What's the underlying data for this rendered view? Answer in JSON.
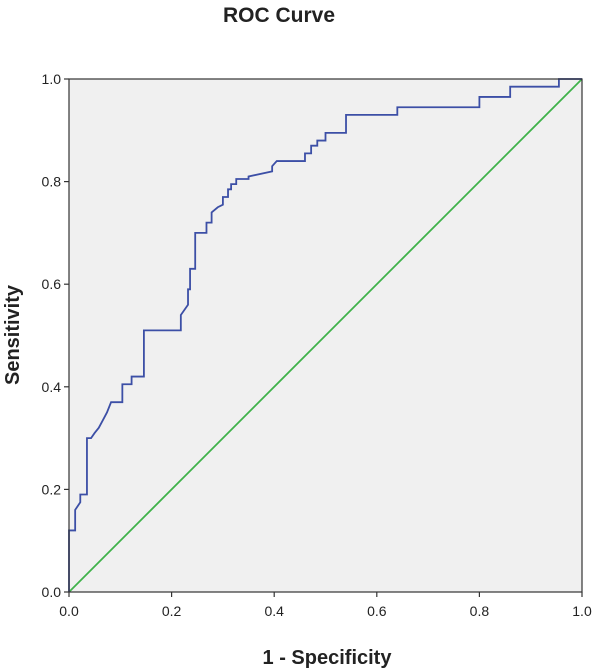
{
  "chart_data": {
    "type": "line",
    "title": "ROC Curve",
    "xlabel": "1 - Specificity",
    "ylabel": "Sensitivity",
    "xlim": [
      0,
      1
    ],
    "ylim": [
      0,
      1
    ],
    "grid": false,
    "plot_background": "#f0f0f0",
    "x_ticks": [
      0.0,
      0.2,
      0.4,
      0.6,
      0.8,
      1.0
    ],
    "x_tick_labels": [
      "0.0",
      "0.2",
      "0.4",
      "0.6",
      "0.8",
      "1.0"
    ],
    "y_ticks": [
      0.0,
      0.2,
      0.4,
      0.6,
      0.8,
      1.0
    ],
    "y_tick_labels": [
      "0.0",
      "0.2",
      "0.4",
      "0.6",
      "0.8",
      "1.0"
    ],
    "series": [
      {
        "color": "#3c4fa6",
        "step": true,
        "x": [
          0.0,
          0.0,
          0.012,
          0.012,
          0.022,
          0.022,
          0.035,
          0.035,
          0.043,
          0.05,
          0.058,
          0.066,
          0.074,
          0.082,
          0.082,
          0.104,
          0.104,
          0.122,
          0.122,
          0.146,
          0.146,
          0.218,
          0.218,
          0.232,
          0.232,
          0.236,
          0.236,
          0.246,
          0.246,
          0.268,
          0.268,
          0.278,
          0.278,
          0.29,
          0.3,
          0.3,
          0.31,
          0.31,
          0.316,
          0.316,
          0.326,
          0.326,
          0.35,
          0.35,
          0.396,
          0.396,
          0.405,
          0.41,
          0.46,
          0.46,
          0.472,
          0.472,
          0.484,
          0.484,
          0.5,
          0.5,
          0.54,
          0.54,
          0.64,
          0.64,
          0.8,
          0.8,
          0.86,
          0.86,
          0.955,
          0.955,
          1.0
        ],
        "y": [
          0.0,
          0.12,
          0.12,
          0.16,
          0.175,
          0.19,
          0.19,
          0.3,
          0.3,
          0.31,
          0.32,
          0.335,
          0.35,
          0.37,
          0.37,
          0.37,
          0.405,
          0.405,
          0.42,
          0.42,
          0.51,
          0.51,
          0.54,
          0.56,
          0.59,
          0.59,
          0.63,
          0.63,
          0.7,
          0.7,
          0.72,
          0.72,
          0.74,
          0.75,
          0.755,
          0.77,
          0.77,
          0.785,
          0.785,
          0.795,
          0.795,
          0.805,
          0.805,
          0.81,
          0.82,
          0.83,
          0.84,
          0.84,
          0.84,
          0.855,
          0.855,
          0.87,
          0.87,
          0.88,
          0.88,
          0.895,
          0.895,
          0.93,
          0.93,
          0.945,
          0.945,
          0.965,
          0.965,
          0.985,
          0.985,
          1.0,
          1.0
        ]
      },
      {
        "color": "#3fb24a",
        "x": [
          0.0,
          1.0
        ],
        "y": [
          0.0,
          1.0
        ]
      }
    ]
  }
}
